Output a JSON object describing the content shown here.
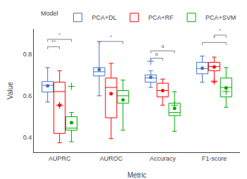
{
  "chart_data": {
    "type": "box",
    "xlabel": "Metric",
    "ylabel": "Value",
    "categories": [
      "AUPRC",
      "AUROC",
      "Accuracy",
      "F1-score"
    ],
    "series": [
      {
        "name": "PCA+DL",
        "color": "#4472C4",
        "values": [
          {
            "med": 0.65,
            "q1": 0.618,
            "q3": 0.668,
            "whislo": 0.57,
            "whishi": 0.735,
            "fliers": [],
            "mean": 0.648
          },
          {
            "med": 0.715,
            "q1": 0.695,
            "q3": 0.735,
            "whislo": 0.6,
            "whishi": 0.86,
            "fliers": [],
            "mean": 0.725
          },
          {
            "med": 0.685,
            "q1": 0.665,
            "q3": 0.7,
            "whislo": 0.64,
            "whishi": 0.72,
            "fliers": [
              0.765
            ],
            "mean": 0.688
          },
          {
            "med": 0.73,
            "q1": 0.705,
            "q3": 0.76,
            "whislo": 0.665,
            "whishi": 0.79,
            "fliers": [],
            "mean": 0.732
          }
        ]
      },
      {
        "name": "PCA+RF",
        "color": "#FF0000",
        "values": [
          {
            "med": 0.62,
            "q1": 0.42,
            "q3": 0.665,
            "whislo": 0.375,
            "whishi": 0.72,
            "fliers": [
              0.555
            ],
            "mean": 0.555
          },
          {
            "med": 0.64,
            "q1": 0.495,
            "q3": 0.685,
            "whislo": 0.395,
            "whishi": 0.755,
            "fliers": [],
            "mean": 0.61
          },
          {
            "med": 0.625,
            "q1": 0.595,
            "q3": 0.66,
            "whislo": 0.555,
            "whishi": 0.68,
            "fliers": [],
            "mean": 0.625
          },
          {
            "med": 0.74,
            "q1": 0.72,
            "q3": 0.76,
            "whislo": 0.665,
            "whishi": 0.785,
            "fliers": [
              0.67
            ],
            "mean": 0.738
          }
        ]
      },
      {
        "name": "PCA+SVM",
        "color": "#00AA00",
        "values": [
          {
            "med": 0.445,
            "q1": 0.435,
            "q3": 0.5,
            "whislo": 0.38,
            "whishi": 0.52,
            "fliers": [
              0.645
            ],
            "mean": 0.472
          },
          {
            "med": 0.6,
            "q1": 0.565,
            "q3": 0.625,
            "whislo": 0.435,
            "whishi": 0.675,
            "fliers": [],
            "mean": 0.58
          },
          {
            "med": 0.52,
            "q1": 0.505,
            "q3": 0.565,
            "whislo": 0.43,
            "whishi": 0.62,
            "fliers": [
              0.555
            ],
            "mean": 0.54
          },
          {
            "med": 0.64,
            "q1": 0.595,
            "q3": 0.685,
            "whislo": 0.545,
            "whishi": 0.735,
            "fliers": [
              0.62
            ],
            "mean": 0.638
          }
        ]
      }
    ],
    "brackets": [
      {
        "category": "AUPRC",
        "from": "PCA+DL",
        "to": "PCA+RF",
        "y": 0.835,
        "label": "**"
      },
      {
        "category": "AUPRC",
        "from": "PCA+DL",
        "to": "PCA+SVM",
        "y": 0.87,
        "label": "*"
      },
      {
        "category": "AUROC",
        "from": "PCA+DL",
        "to": "PCA+SVM",
        "y": 0.86,
        "label": "*"
      },
      {
        "category": "Accuracy",
        "from": "PCA+DL",
        "to": "PCA+RF",
        "y": 0.78,
        "label": "a"
      },
      {
        "category": "Accuracy",
        "from": "PCA+DL",
        "to": "PCA+SVM",
        "y": 0.815,
        "label": "a"
      },
      {
        "category": "F1-score",
        "from": "PCA+DL",
        "to": "PCA+SVM",
        "y": 0.855,
        "label": "*"
      },
      {
        "category": "F1-score",
        "from": "PCA+RF",
        "to": "PCA+SVM",
        "y": 0.89,
        "label": "*"
      }
    ],
    "ylim": [
      0.33,
      0.92
    ],
    "yticks": [
      0.4,
      0.6,
      0.8
    ],
    "legend": "upper right",
    "legend_title": "Model",
    "grid": false
  }
}
